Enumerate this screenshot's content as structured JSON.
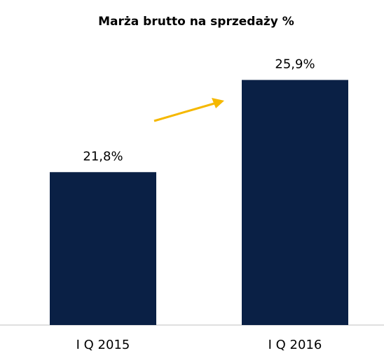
{
  "chart_data": {
    "type": "bar",
    "title": "Marża brutto na sprzedaży %",
    "categories": [
      "I Q 2015",
      "I Q 2016"
    ],
    "values": [
      21.8,
      25.9
    ],
    "value_labels": [
      "21,8%",
      "25,9%"
    ],
    "color": "#0a2045",
    "ylim": [
      15,
      27
    ]
  }
}
